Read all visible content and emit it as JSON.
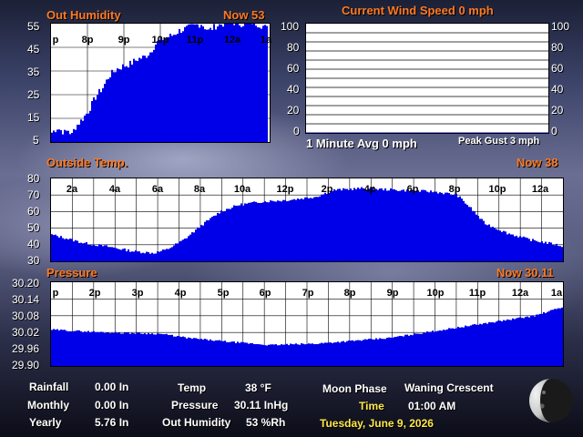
{
  "humidity": {
    "title": "Out Humidity",
    "now": "Now 53",
    "y_ticks": [
      "55",
      "45",
      "35",
      "25",
      "15",
      "5"
    ],
    "x_ticks": [
      "p",
      "8p",
      "9p",
      "10p",
      "11p",
      "12a",
      "1a"
    ],
    "chart_data": {
      "type": "bar",
      "ylim": [
        5,
        55
      ],
      "x_ticks": [
        "p",
        "8p",
        "9p",
        "10p",
        "11p",
        "12a",
        "1a"
      ],
      "keys": [
        [
          0,
          9
        ],
        [
          6,
          11
        ],
        [
          10,
          10
        ],
        [
          14,
          9
        ],
        [
          18,
          10
        ],
        [
          22,
          8
        ],
        [
          25,
          11
        ],
        [
          32,
          14
        ],
        [
          40,
          18
        ],
        [
          48,
          24
        ],
        [
          56,
          28
        ],
        [
          63,
          33
        ],
        [
          72,
          36
        ],
        [
          78,
          37
        ],
        [
          86,
          38
        ],
        [
          94,
          40
        ],
        [
          102,
          41
        ],
        [
          108,
          43
        ],
        [
          115,
          47
        ],
        [
          124,
          49
        ],
        [
          132,
          50
        ],
        [
          140,
          52
        ],
        [
          148,
          53
        ],
        [
          156,
          54
        ],
        [
          164,
          55
        ],
        [
          172,
          52
        ],
        [
          180,
          54
        ],
        [
          188,
          55
        ],
        [
          196,
          56
        ],
        [
          204,
          55
        ],
        [
          212,
          55
        ],
        [
          218,
          56
        ],
        [
          225,
          55
        ],
        [
          232,
          54
        ],
        [
          236,
          53
        ]
      ],
      "noise": 1.5
    }
  },
  "wind": {
    "title": "Current Wind Speed 0 mph",
    "y_ticks": [
      "100",
      "80",
      "60",
      "40",
      "20",
      "0"
    ],
    "avg": "1 Minute Avg 0 mph",
    "gust": "Peak Gust 3 mph",
    "chart_data": {
      "type": "line",
      "ylim": [
        0,
        100
      ],
      "values": [
        0
      ]
    }
  },
  "temp": {
    "title": "Outside Temp.",
    "now": "Now 38",
    "y_ticks": [
      "80",
      "70",
      "60",
      "50",
      "40",
      "30"
    ],
    "x_ticks": [
      "2a",
      "4a",
      "6a",
      "8a",
      "10a",
      "12p",
      "2p",
      "4p",
      "6p",
      "8p",
      "10p",
      "12a"
    ],
    "chart_data": {
      "type": "bar",
      "ylim": [
        30,
        80
      ],
      "x_ticks": [
        "2a",
        "4a",
        "6a",
        "8a",
        "10a",
        "12p",
        "2p",
        "4p",
        "6p",
        "8p",
        "10p",
        "12a"
      ],
      "keys": [
        [
          0,
          46
        ],
        [
          15,
          44
        ],
        [
          35,
          41
        ],
        [
          60,
          39
        ],
        [
          90,
          36
        ],
        [
          112,
          35
        ],
        [
          126,
          37
        ],
        [
          145,
          43
        ],
        [
          165,
          52
        ],
        [
          185,
          60
        ],
        [
          205,
          64
        ],
        [
          230,
          66
        ],
        [
          260,
          67
        ],
        [
          290,
          69
        ],
        [
          310,
          73
        ],
        [
          340,
          74
        ],
        [
          380,
          73
        ],
        [
          420,
          72
        ],
        [
          445,
          70
        ],
        [
          460,
          62
        ],
        [
          475,
          53
        ],
        [
          500,
          47
        ],
        [
          525,
          43
        ],
        [
          545,
          41
        ],
        [
          562,
          39
        ]
      ],
      "noise": 0.8
    }
  },
  "pressure": {
    "title": "Pressure",
    "now": "Now 30.11",
    "y_ticks": [
      "30.20",
      "30.14",
      "30.08",
      "30.02",
      "29.96",
      "29.90"
    ],
    "x_ticks": [
      "p",
      "2p",
      "3p",
      "4p",
      "5p",
      "6p",
      "7p",
      "8p",
      "9p",
      "10p",
      "11p",
      "12a",
      "1a"
    ],
    "chart_data": {
      "type": "bar",
      "ylim": [
        29.9,
        30.2
      ],
      "x_ticks": [
        "p",
        "2p",
        "3p",
        "4p",
        "5p",
        "6p",
        "7p",
        "8p",
        "9p",
        "10p",
        "11p",
        "12a",
        "1a"
      ],
      "keys": [
        [
          0,
          30.03
        ],
        [
          60,
          30.02
        ],
        [
          120,
          30.015
        ],
        [
          150,
          30.0
        ],
        [
          200,
          29.985
        ],
        [
          240,
          29.975
        ],
        [
          290,
          29.98
        ],
        [
          330,
          29.99
        ],
        [
          370,
          30.0
        ],
        [
          410,
          30.02
        ],
        [
          450,
          30.04
        ],
        [
          490,
          30.06
        ],
        [
          530,
          30.08
        ],
        [
          560,
          30.11
        ]
      ],
      "noise": 0.003
    }
  },
  "stats": {
    "rainfall_label": "Rainfall",
    "rainfall_value": "0.00 In",
    "monthly_label": "Monthly",
    "monthly_value": "0.00 In",
    "yearly_label": "Yearly",
    "yearly_value": "5.76 In",
    "temp_label": "Temp",
    "temp_value": "38 °F",
    "pressure_label": "Pressure",
    "pressure_value": "30.11 InHg",
    "humidity_label": "Out Humidity",
    "humidity_value": "53 %Rh",
    "moon_label": "Moon Phase",
    "moon_value": "Waning Crescent",
    "time_label": "Time",
    "time_value": "01:00 AM",
    "date": "Tuesday, June 9, 2026"
  },
  "colors": {
    "bar": "#0000e8",
    "title": "#ff7a22",
    "accent": "#ffe84a"
  }
}
